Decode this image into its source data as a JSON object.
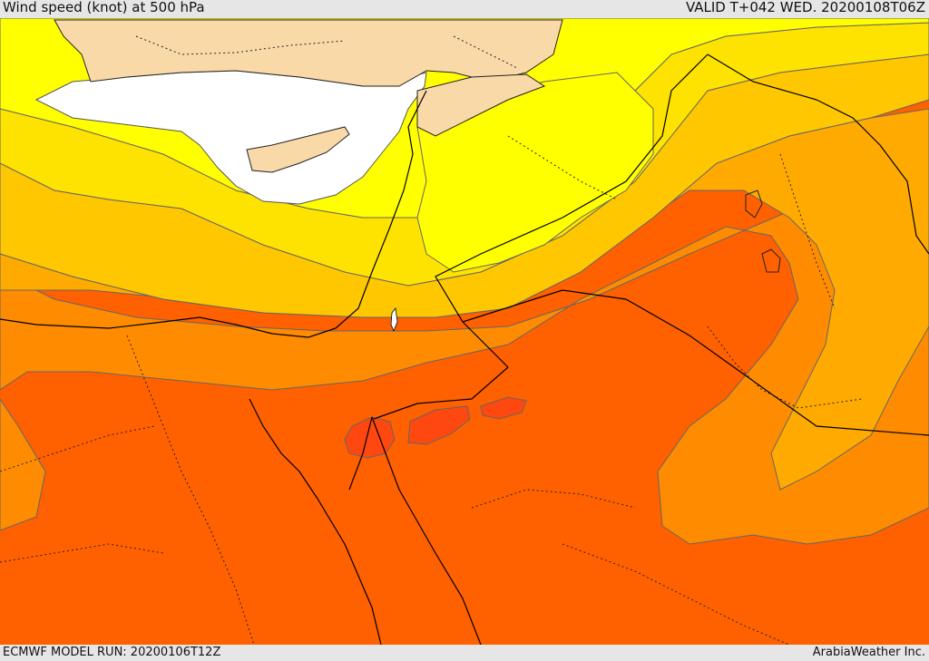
{
  "header": {
    "title": "Wind speed (knot) at 500 hPa",
    "valid_time": "VALID T+042 WED. 20200108T06Z"
  },
  "footer": {
    "model_run": "ECMWF MODEL RUN: 20200106T12Z",
    "credit": "ArabiaWeather Inc."
  },
  "colors": {
    "land_background": "#fad9a8",
    "calm_white": "#ffffff",
    "level_1": "#ffff00",
    "level_2": "#ffe300",
    "level_3": "#ffc700",
    "level_4": "#ffaa00",
    "level_5": "#ff8c00",
    "level_6": "#ff6000",
    "level_7": "#ff4810",
    "level_8": "#ff3020",
    "contour_line": "#555555",
    "border_line": "#000000"
  }
}
